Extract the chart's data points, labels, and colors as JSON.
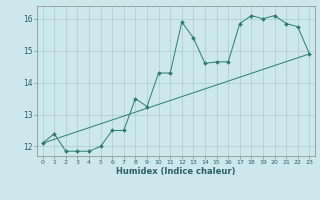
{
  "title": "",
  "xlabel": "Humidex (Indice chaleur)",
  "ylabel": "",
  "background_color": "#cce8ec",
  "line_color": "#2d7d6e",
  "grid_color": "#aacccc",
  "line1_x": [
    0,
    1,
    2,
    3,
    4,
    5,
    6,
    7,
    8,
    9,
    10,
    11,
    12,
    13,
    14,
    15,
    16,
    17,
    18,
    19,
    20,
    21,
    22,
    23
  ],
  "line1_y": [
    12.1,
    12.4,
    11.85,
    11.85,
    11.85,
    12.0,
    12.5,
    12.5,
    13.5,
    13.25,
    14.3,
    14.3,
    15.9,
    15.4,
    14.6,
    14.65,
    14.65,
    15.85,
    16.1,
    16.0,
    16.1,
    15.85,
    15.75,
    14.9
  ],
  "line2_x": [
    0,
    23
  ],
  "line2_y": [
    12.1,
    14.9
  ],
  "ylim": [
    11.7,
    16.4
  ],
  "xlim": [
    -0.5,
    23.5
  ],
  "yticks": [
    12,
    13,
    14,
    15,
    16
  ],
  "xticks": [
    0,
    1,
    2,
    3,
    4,
    5,
    6,
    7,
    8,
    9,
    10,
    11,
    12,
    13,
    14,
    15,
    16,
    17,
    18,
    19,
    20,
    21,
    22,
    23
  ]
}
